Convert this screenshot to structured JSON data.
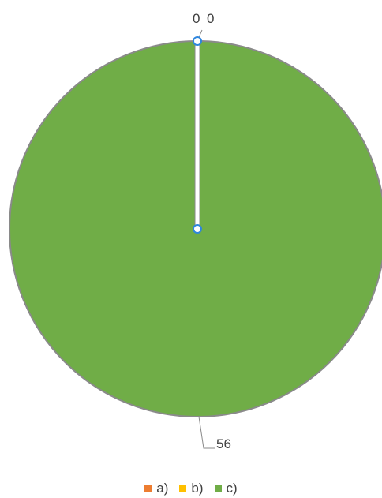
{
  "chart_data": {
    "type": "pie",
    "categories": [
      "a)",
      "b)",
      "c)"
    ],
    "values": [
      0,
      0,
      56
    ],
    "colors": [
      "#ED7D31",
      "#FFC000",
      "#70AD47"
    ],
    "data_labels": [
      "0",
      "0",
      "56"
    ],
    "legend_position": "bottom"
  }
}
